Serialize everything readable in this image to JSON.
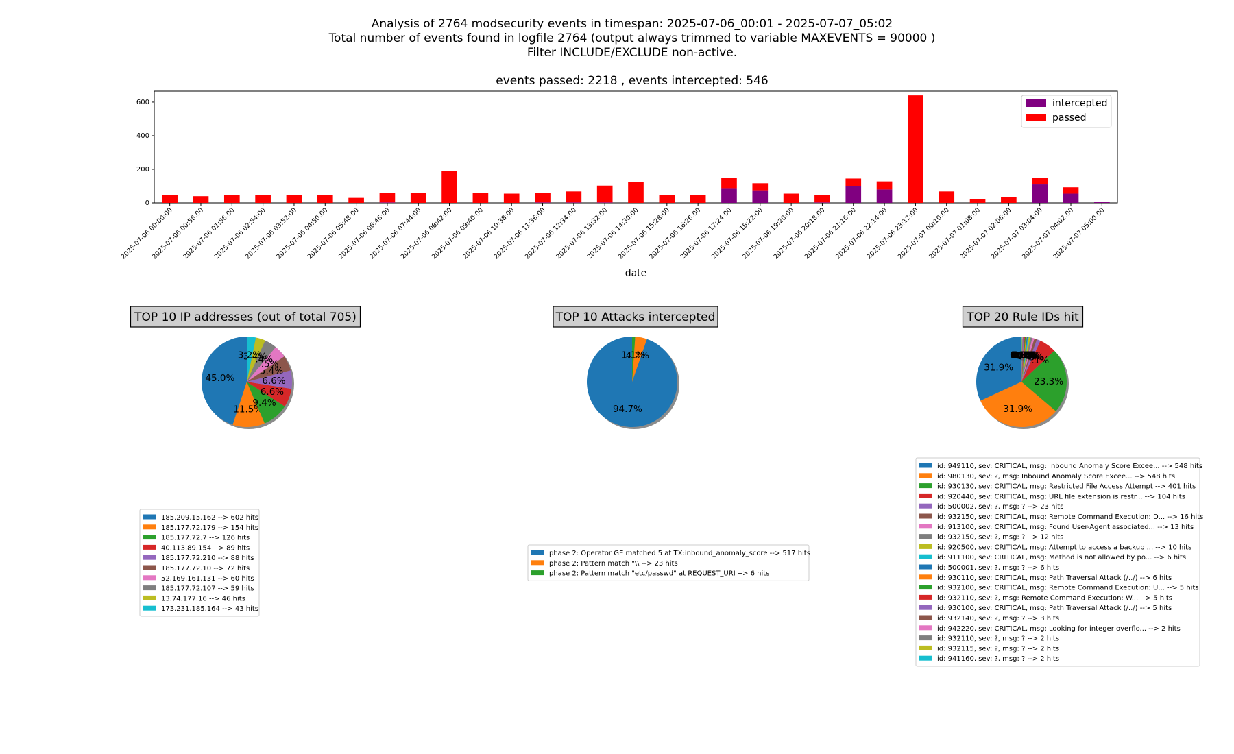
{
  "header": {
    "line1": "Analysis of 2764 modsecurity events in timespan: 2025-07-06_00:01 - 2025-07-07_05:02",
    "line2": "Total number of events found in logfile 2764 (output always trimmed to variable MAXEVENTS = 90000 )",
    "line3": "Filter INCLUDE/EXCLUDE non-active.",
    "subtitle": "events passed: 2218 , events intercepted: 546"
  },
  "colors": {
    "passed": "#ff0000",
    "intercepted": "#800080",
    "palette": [
      "#1f77b4",
      "#ff7f0e",
      "#2ca02c",
      "#d62728",
      "#9467bd",
      "#8c564b",
      "#e377c2",
      "#7f7f7f",
      "#bcbd22",
      "#17becf"
    ]
  },
  "chart_data": [
    {
      "type": "bar",
      "stacked": true,
      "title": "events passed: 2218 , events intercepted: 546",
      "xlabel": "date",
      "ylabel": "",
      "ylim": [
        0,
        665
      ],
      "yticks": [
        0,
        200,
        400,
        600
      ],
      "grid": false,
      "legend_position": "top-right",
      "categories": [
        "2025-07-06 00:00:00",
        "2025-07-06 00:58:00",
        "2025-07-06 01:56:00",
        "2025-07-06 02:54:00",
        "2025-07-06 03:52:00",
        "2025-07-06 04:50:00",
        "2025-07-06 05:48:00",
        "2025-07-06 06:46:00",
        "2025-07-06 07:44:00",
        "2025-07-06 08:42:00",
        "2025-07-06 09:40:00",
        "2025-07-06 10:38:00",
        "2025-07-06 11:36:00",
        "2025-07-06 12:34:00",
        "2025-07-06 13:32:00",
        "2025-07-06 14:30:00",
        "2025-07-06 15:28:00",
        "2025-07-06 16:26:00",
        "2025-07-06 17:24:00",
        "2025-07-06 18:22:00",
        "2025-07-06 19:20:00",
        "2025-07-06 20:18:00",
        "2025-07-06 21:16:00",
        "2025-07-06 22:14:00",
        "2025-07-06 23:12:00",
        "2025-07-07 00:10:00",
        "2025-07-07 01:08:00",
        "2025-07-07 02:06:00",
        "2025-07-07 03:04:00",
        "2025-07-07 04:02:00",
        "2025-07-07 05:00:00"
      ],
      "series": [
        {
          "name": "intercepted",
          "values": [
            0,
            0,
            0,
            0,
            0,
            0,
            0,
            3,
            0,
            0,
            0,
            0,
            3,
            3,
            3,
            0,
            0,
            0,
            88,
            75,
            0,
            3,
            100,
            80,
            0,
            0,
            0,
            0,
            110,
            55,
            5
          ]
        },
        {
          "name": "passed",
          "values": [
            48,
            40,
            48,
            45,
            45,
            48,
            30,
            57,
            60,
            190,
            60,
            55,
            57,
            65,
            100,
            125,
            48,
            48,
            60,
            42,
            55,
            45,
            45,
            48,
            640,
            68,
            22,
            35,
            40,
            38,
            2
          ]
        }
      ]
    },
    {
      "type": "pie",
      "title": "TOP 10 IP addresses (out of total 705)",
      "legend_position": "bottom-left",
      "labels": [
        "185.209.15.162 --> 602 hits",
        "185.177.72.179 --> 154 hits",
        "185.177.72.7 --> 126 hits",
        "40.113.89.154 --> 89 hits",
        "185.177.72.210 --> 88 hits",
        "185.177.72.10 --> 72 hits",
        "52.169.161.131 --> 60 hits",
        "185.177.72.107 --> 59 hits",
        "13.74.177.16 --> 46 hits",
        "173.231.185.164 --> 43 hits"
      ],
      "values": [
        602,
        154,
        126,
        89,
        88,
        72,
        60,
        59,
        46,
        43
      ],
      "pct_labels": [
        "45.0%",
        "11.5%",
        "9.4%",
        "6.6%",
        "6.6%",
        "5.4%",
        "4.5%",
        "4.4%",
        "3.4%",
        "3.2%"
      ]
    },
    {
      "type": "pie",
      "title": "TOP 10 Attacks intercepted",
      "legend_position": "bottom-center",
      "labels": [
        "phase 2: Operator GE matched 5 at TX:inbound_anomaly_score --> 517 hits",
        "phase 2: Pattern match \"\\\\ --> 23 hits",
        "phase 2: Pattern match \"etc/passwd\" at REQUEST_URI --> 6 hits"
      ],
      "values": [
        517,
        23,
        6
      ],
      "pct_labels": [
        "94.7%",
        "4.2%",
        "1.1%"
      ]
    },
    {
      "type": "pie",
      "title": "TOP 20 Rule IDs hit",
      "legend_position": "bottom-right",
      "labels": [
        "id: 949110, sev: CRITICAL, msg: Inbound Anomaly Score Excee... --> 548 hits",
        "id: 980130, sev: ?, msg: Inbound Anomaly Score Excee... --> 548 hits",
        "id: 930130, sev: CRITICAL, msg: Restricted File Access Attempt --> 401 hits",
        "id: 920440, sev: CRITICAL, msg: URL file extension is restr... --> 104 hits",
        "id: 500002, sev: ?, msg: ? --> 23 hits",
        "id: 932150, sev: CRITICAL, msg: Remote Command Execution: D... --> 16 hits",
        "id: 913100, sev: CRITICAL, msg: Found User-Agent associated... --> 13 hits",
        "id: 932150, sev: ?, msg: ? --> 12 hits",
        "id: 920500, sev: CRITICAL, msg: Attempt to access a backup ... --> 10 hits",
        "id: 911100, sev: CRITICAL, msg: Method is not allowed by po... --> 6 hits",
        "id: 500001, sev: ?, msg: ? --> 6 hits",
        "id: 930110, sev: CRITICAL, msg: Path Traversal Attack (/../) --> 6 hits",
        "id: 932100, sev: CRITICAL, msg: Remote Command Execution: U... --> 5 hits",
        "id: 932110, sev: ?, msg: Remote Command Execution: W... --> 5 hits",
        "id: 930100, sev: CRITICAL, msg: Path Traversal Attack (/../) --> 5 hits",
        "id: 932140, sev: ?, msg: ? --> 3 hits",
        "id: 942220, sev: CRITICAL, msg: Looking for integer overflo... --> 2 hits",
        "id: 932110, sev: ?, msg: ? --> 2 hits",
        "id: 932115, sev: ?, msg: ? --> 2 hits",
        "id: 941160, sev: ?, msg: ? --> 2 hits"
      ],
      "values": [
        548,
        548,
        401,
        104,
        23,
        16,
        13,
        12,
        10,
        6,
        6,
        6,
        5,
        5,
        5,
        3,
        2,
        2,
        2,
        2
      ],
      "pct_labels": [
        "31.9%",
        "31.9%",
        "23.3%",
        "6.1%",
        "1.3%",
        "0.9%",
        "0.8%",
        "0.7%",
        "0.6%",
        "0.3%",
        "0.3%",
        "0.3%",
        "0.3%",
        "0.3%",
        "0.3%",
        "0.2%",
        "0.1%",
        "0.1%",
        "0.1%",
        "0.1%"
      ]
    }
  ]
}
